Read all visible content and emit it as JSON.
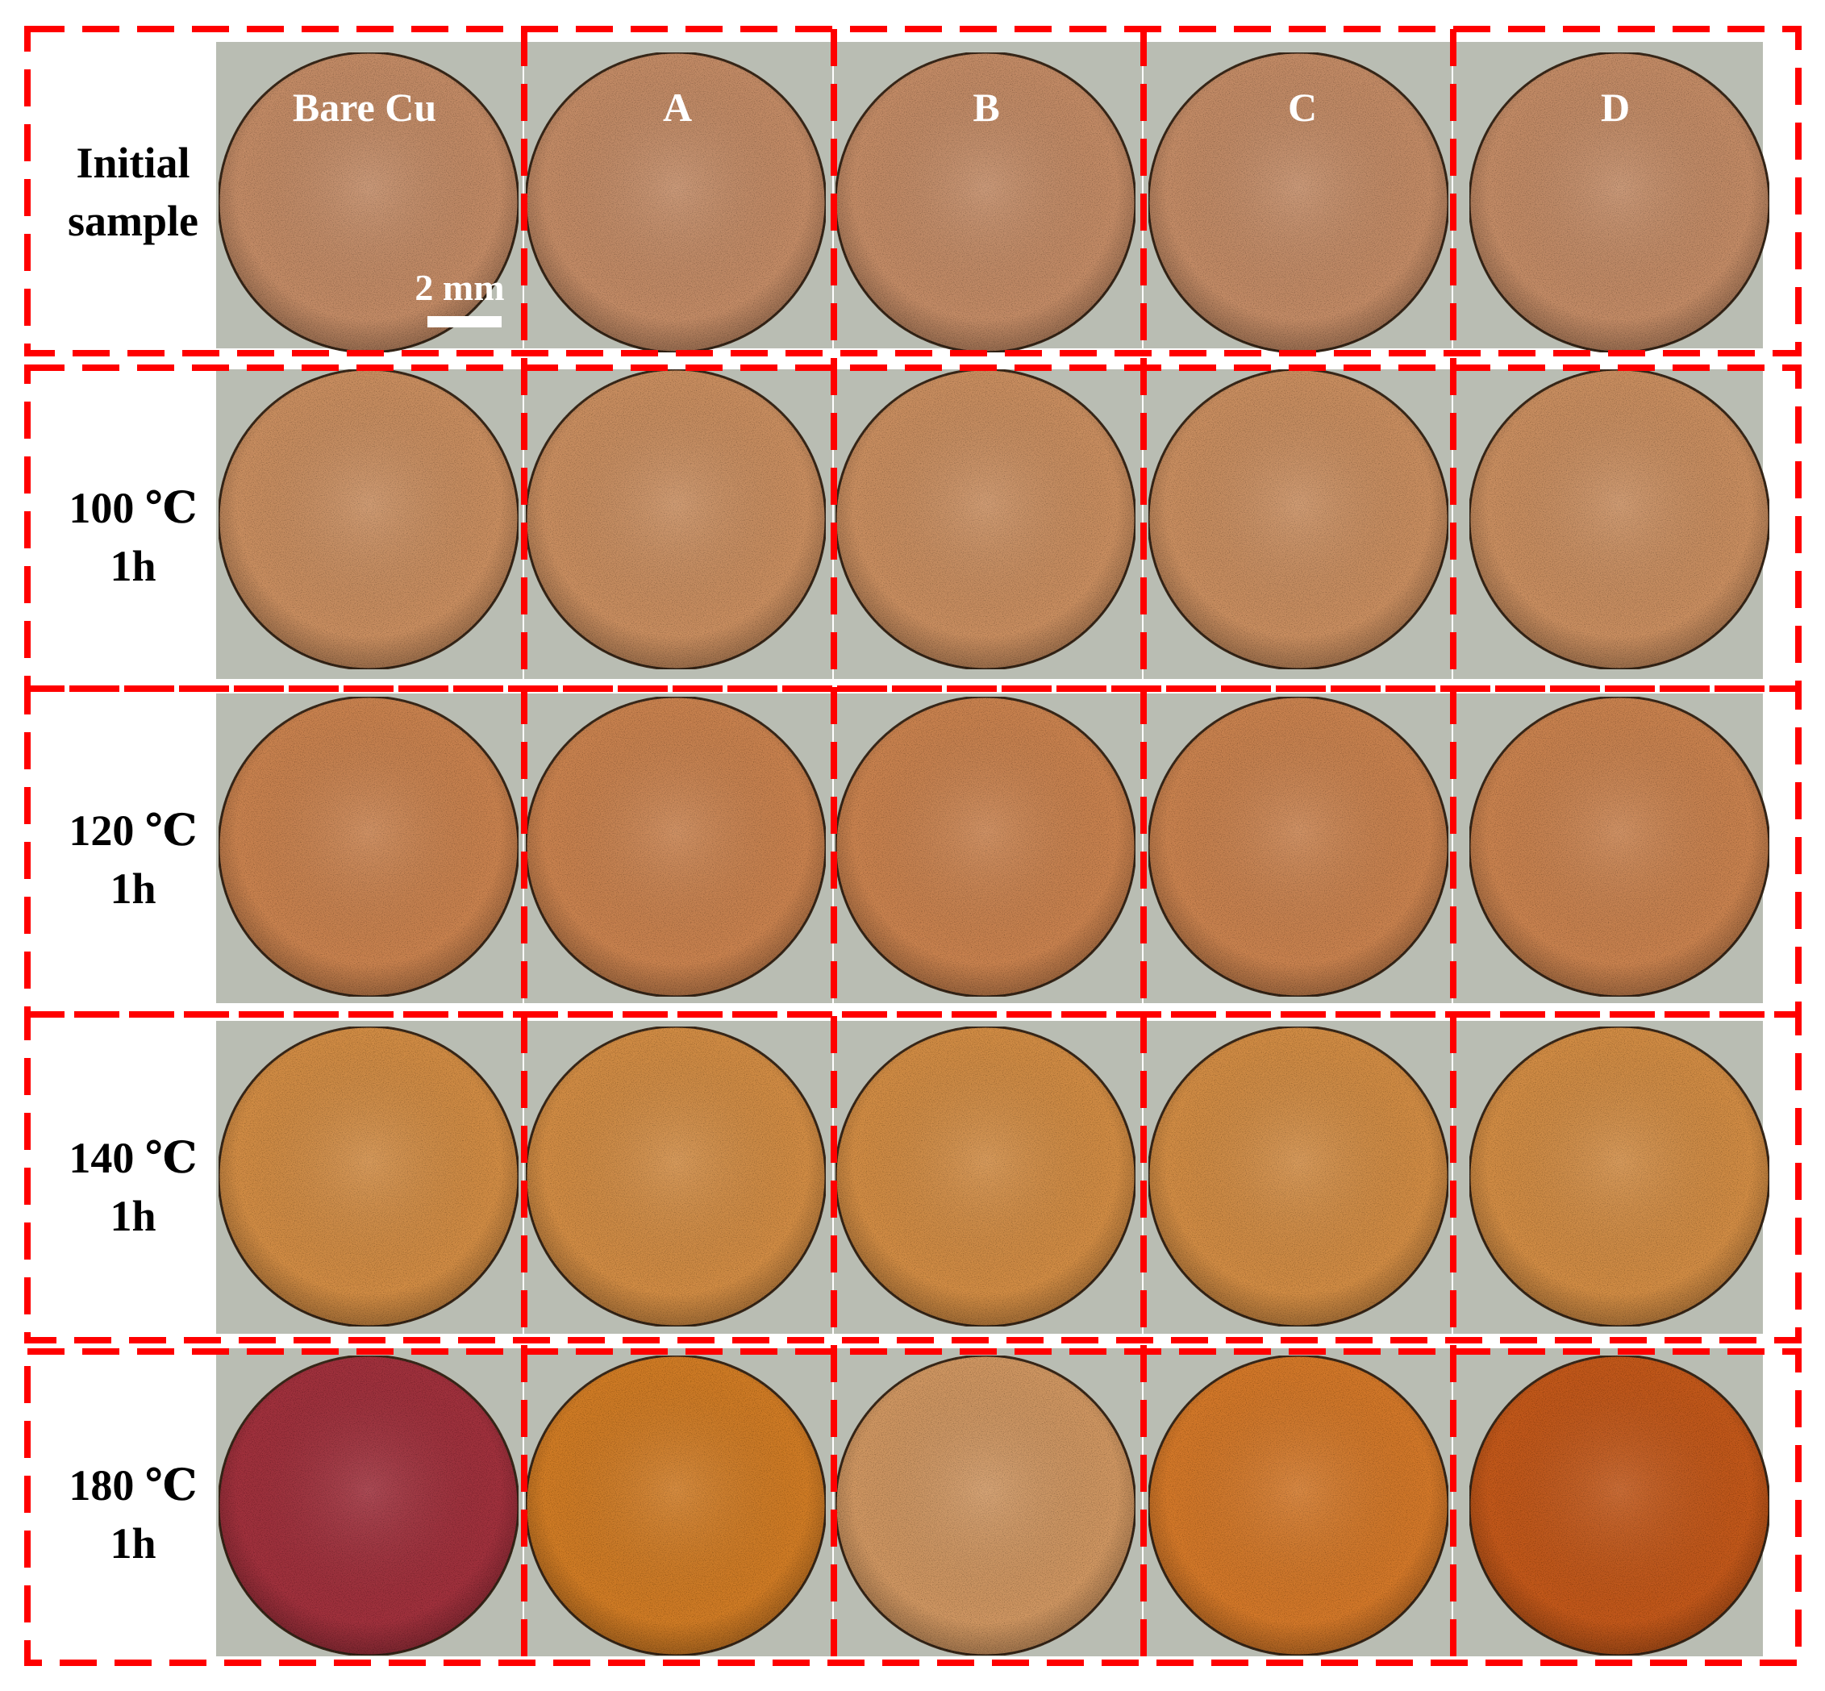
{
  "columns": [
    "Bare Cu",
    "A",
    "B",
    "C",
    "D"
  ],
  "rows": [
    {
      "label": "Initial\nsample",
      "tone": "initial"
    },
    {
      "label": "100 ℃\n1h",
      "tone": "t100"
    },
    {
      "label": "120 ℃\n1h",
      "tone": "t120"
    },
    {
      "label": "140 ℃\n1h",
      "tone": "t140"
    },
    {
      "label": "180 ℃\n1h",
      "tone": "t180"
    }
  ],
  "scale_bar": {
    "label": "2 mm"
  },
  "colors": {
    "dash_frame": "#ff0000",
    "panel_background": "#b9bdb3",
    "sample_initial": "#c38b66",
    "sample_100": "#c98e60",
    "sample_120": "#c98250",
    "sample_140": "#d18c45",
    "sample_180_bare": "#a0303e",
    "sample_180_A": "#d07c28",
    "sample_180_B": "#cf9662",
    "sample_180_C": "#d3782a",
    "sample_180_D": "#c2581c"
  }
}
